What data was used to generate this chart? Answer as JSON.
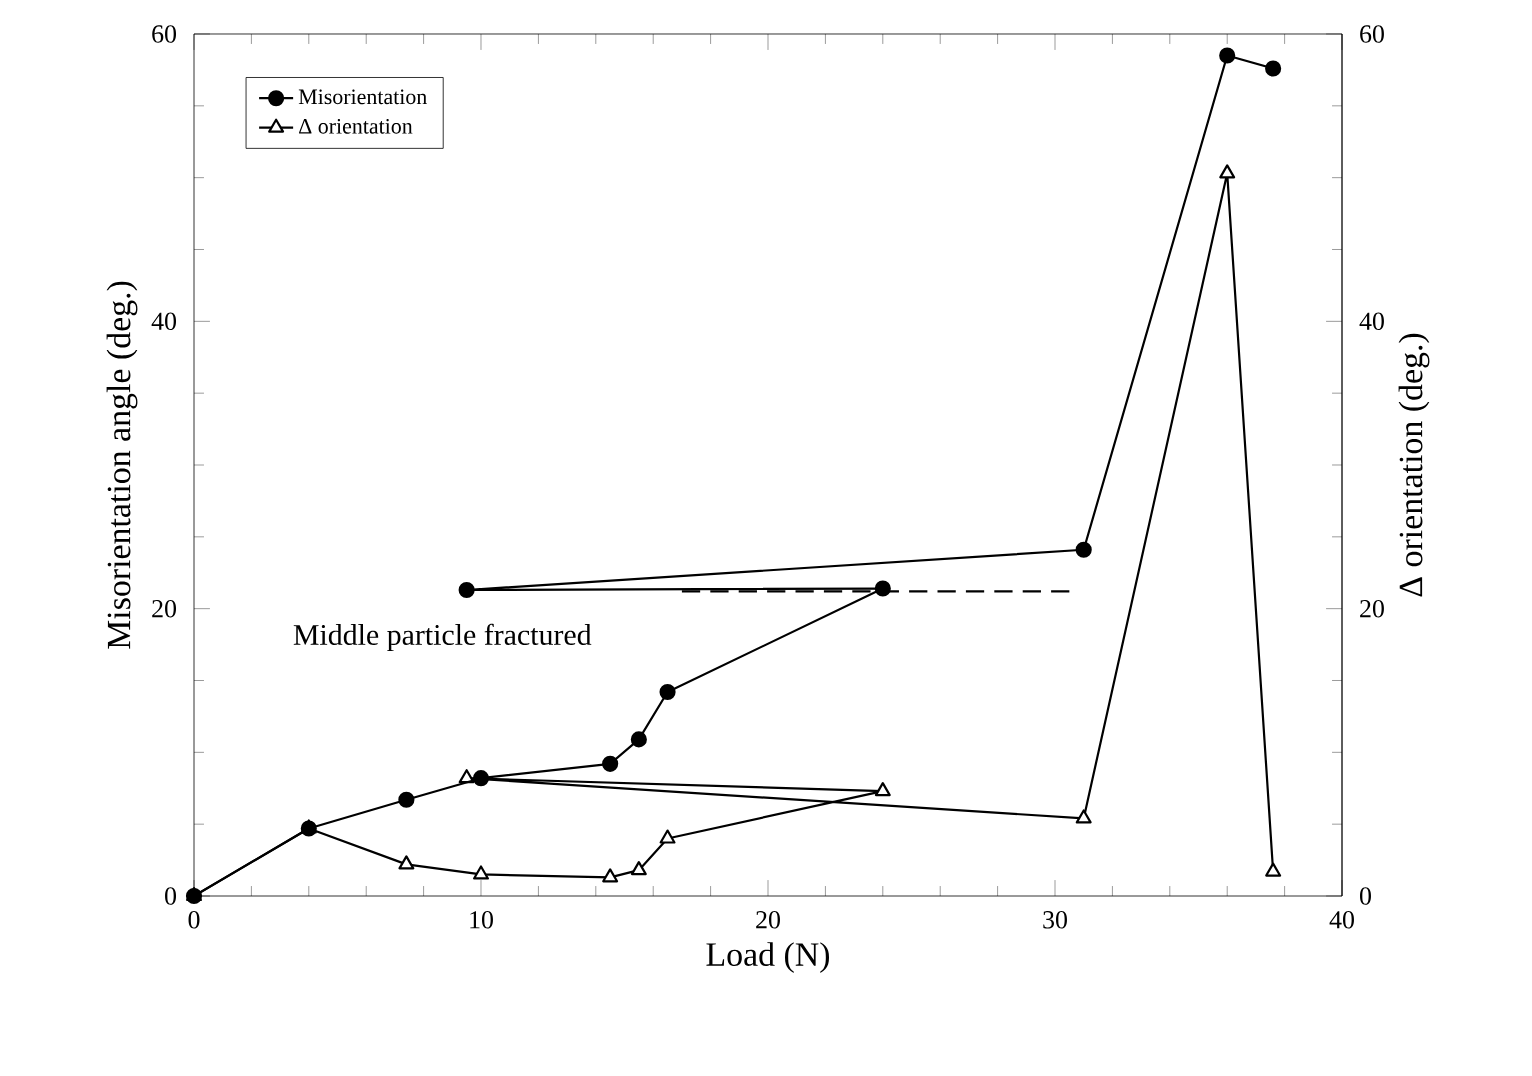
{
  "chart_data": {
    "type": "line",
    "xlabel": "Load (N)",
    "ylabel": "Misorientation angle (deg.)",
    "y2label": "Δ orientation (deg.)",
    "annotations": [
      "Middle particle fractured"
    ],
    "xlim": [
      0,
      40
    ],
    "xticks": [
      0,
      10,
      20,
      30,
      40
    ],
    "ylim": [
      0,
      60
    ],
    "yticks": [
      0,
      20,
      40,
      60
    ],
    "y2lim": [
      0,
      60
    ],
    "y2ticks": [
      0,
      20,
      40,
      60
    ],
    "legend": "top left",
    "grid": false,
    "series": [
      {
        "name": "Misorientation",
        "color": "#000000",
        "marker": "circle",
        "line_style": "solid",
        "x": [
          0,
          4,
          7.4,
          10,
          14.5,
          15.5,
          16.5,
          24,
          9.5,
          31,
          36,
          37.6
        ],
        "values": [
          0,
          4.7,
          6.7,
          8.2,
          9.2,
          10.9,
          14.2,
          21.4,
          21.3,
          24.1,
          58.5,
          57.6
        ]
      },
      {
        "name": "Δ orientation",
        "color": "#000000",
        "marker": "triangle",
        "line_style": "solid",
        "axis": "y2",
        "x": [
          0,
          4,
          7.4,
          10,
          14.5,
          15.5,
          16.5,
          24,
          9.5,
          31,
          36,
          37.6
        ],
        "values": [
          0,
          4.7,
          2.2,
          1.5,
          1.3,
          1.8,
          4.0,
          7.3,
          8.2,
          5.4,
          50.3,
          1.7
        ]
      },
      {
        "color": "#000000",
        "marker": "none",
        "line_style": "dashed",
        "x": [
          17,
          30.5
        ],
        "values": [
          21.2,
          21.2
        ]
      }
    ]
  }
}
